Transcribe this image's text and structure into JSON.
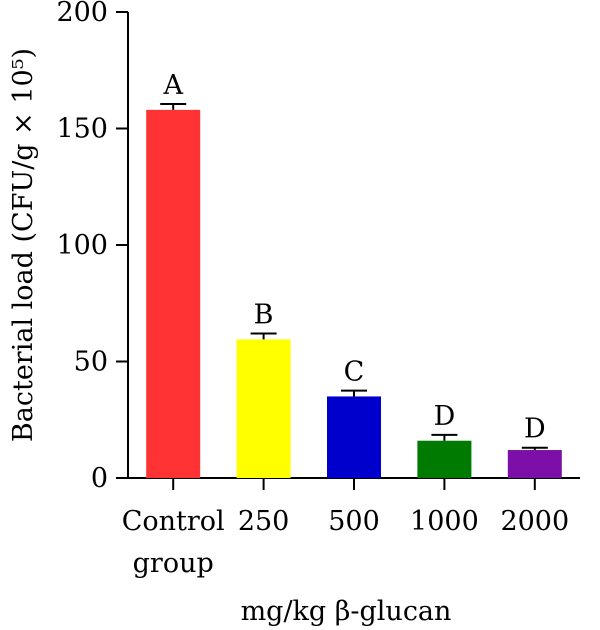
{
  "chart_data": {
    "type": "bar",
    "categories": [
      [
        "Control",
        "group"
      ],
      [
        "250"
      ],
      [
        "500"
      ],
      [
        "1000"
      ],
      [
        "2000"
      ]
    ],
    "values": [
      158,
      59.5,
      35,
      16,
      12
    ],
    "errors": [
      2.5,
      2.5,
      2.5,
      2.5,
      1.0
    ],
    "group_labels": [
      "A",
      "B",
      "C",
      "D",
      "D"
    ],
    "colors": [
      "#FF3333",
      "#FFFF00",
      "#0000CC",
      "#007A00",
      "#7B0FA8"
    ],
    "ylabel": "Bacterial load (CFU/g × 10⁵)",
    "xlabel": "mg/kg β-glucan",
    "ylim": [
      0,
      200
    ],
    "yticks": [
      0,
      50,
      100,
      150,
      200
    ]
  }
}
